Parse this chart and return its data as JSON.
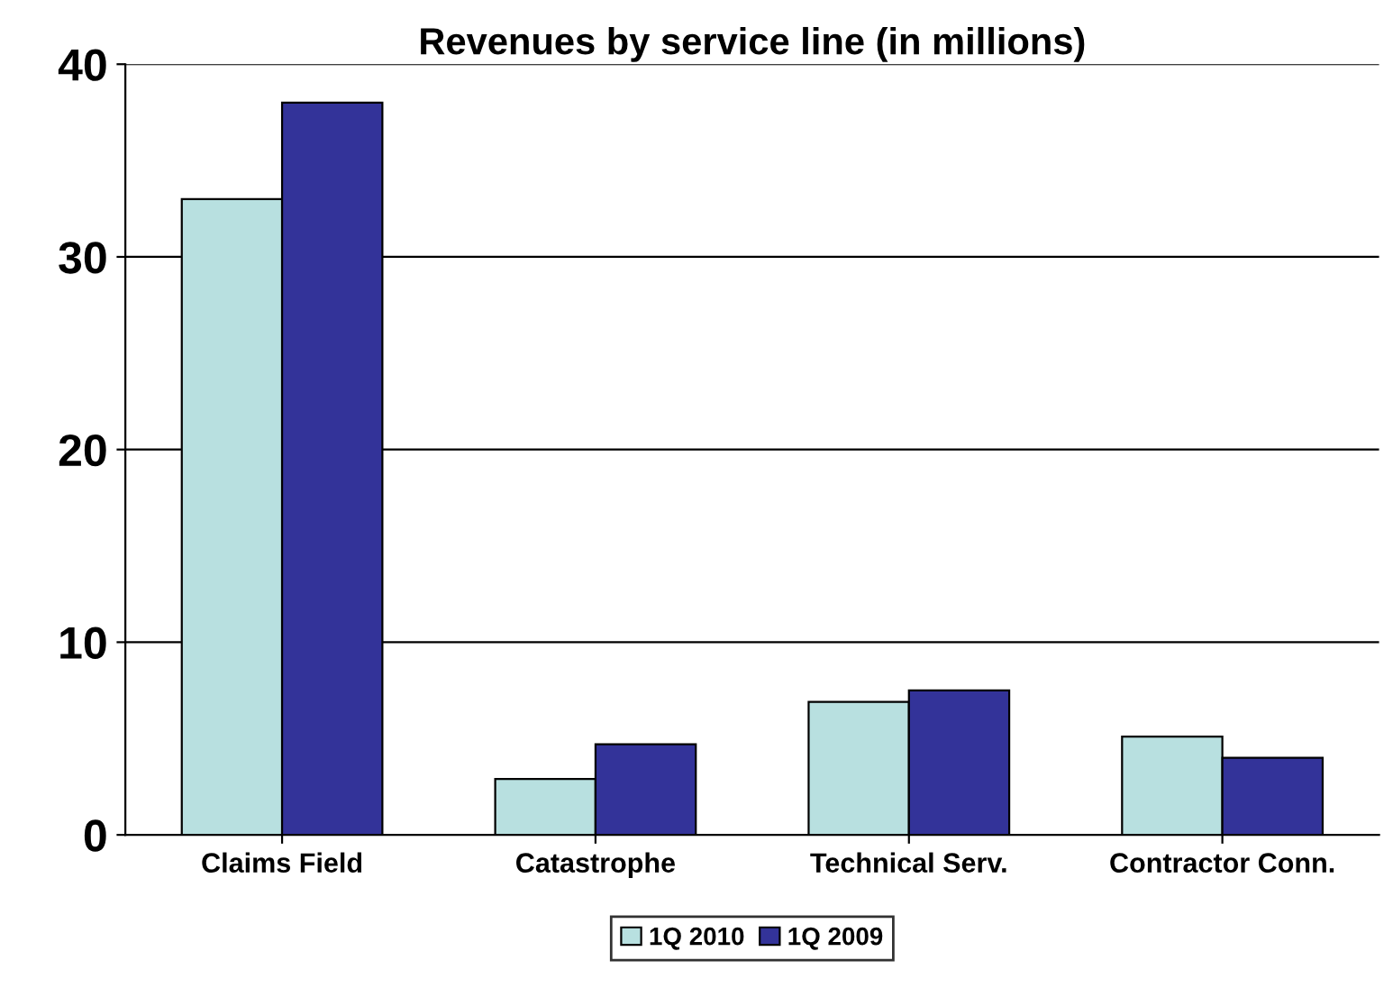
{
  "chart_data": {
    "type": "bar",
    "title": "Revenues by service line (in millions)",
    "categories": [
      "Claims Field",
      "Catastrophe",
      "Technical Serv.",
      "Contractor Conn."
    ],
    "series": [
      {
        "name": "1Q 2010",
        "color": "#b8e0e0",
        "values": [
          33,
          2.9,
          6.9,
          5.1
        ]
      },
      {
        "name": "1Q 2009",
        "color": "#333399",
        "values": [
          38,
          4.7,
          7.5,
          4.0
        ]
      }
    ],
    "ylim": [
      0,
      40
    ],
    "yticks": [
      0,
      10,
      20,
      30,
      40
    ],
    "grid": "y",
    "legend": "bottom"
  }
}
